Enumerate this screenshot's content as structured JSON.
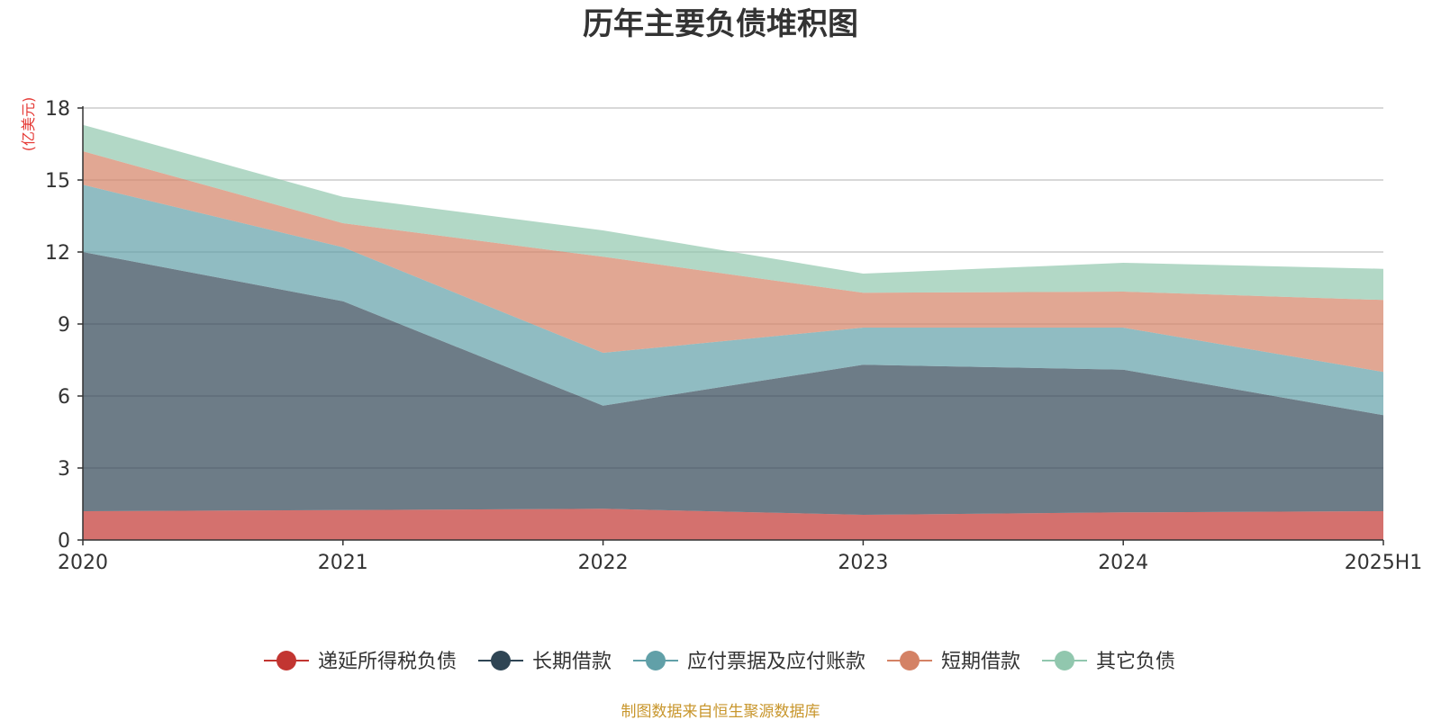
{
  "chart_data": {
    "type": "area",
    "stacked": true,
    "title": "历年主要负债堆积图",
    "y_unit_label": "(亿美元)",
    "categories": [
      "2020",
      "2021",
      "2022",
      "2023",
      "2024",
      "2025H1"
    ],
    "y_ticks": [
      "0",
      "3",
      "6",
      "9",
      "12",
      "15",
      "18"
    ],
    "ylim": [
      0,
      18
    ],
    "grid": true,
    "legend_position": "bottom",
    "series": [
      {
        "name": "递延所得税负债",
        "color": "#c23531",
        "values": [
          1.2,
          1.25,
          1.3,
          1.05,
          1.15,
          1.2
        ]
      },
      {
        "name": "长期借款",
        "color": "#2f4554",
        "values": [
          10.8,
          8.7,
          4.3,
          6.25,
          5.95,
          4.0
        ]
      },
      {
        "name": "应付票据及应付账款",
        "color": "#61a0a8",
        "values": [
          2.8,
          2.25,
          2.2,
          1.55,
          1.75,
          1.8
        ]
      },
      {
        "name": "短期借款",
        "color": "#d48265",
        "values": [
          1.4,
          1.0,
          4.0,
          1.45,
          1.5,
          3.0
        ]
      },
      {
        "name": "其它负债",
        "color": "#91c7ae",
        "values": [
          1.1,
          1.1,
          1.1,
          0.8,
          1.2,
          1.3
        ]
      }
    ],
    "source_note": "制图数据来自恒生聚源数据库"
  }
}
